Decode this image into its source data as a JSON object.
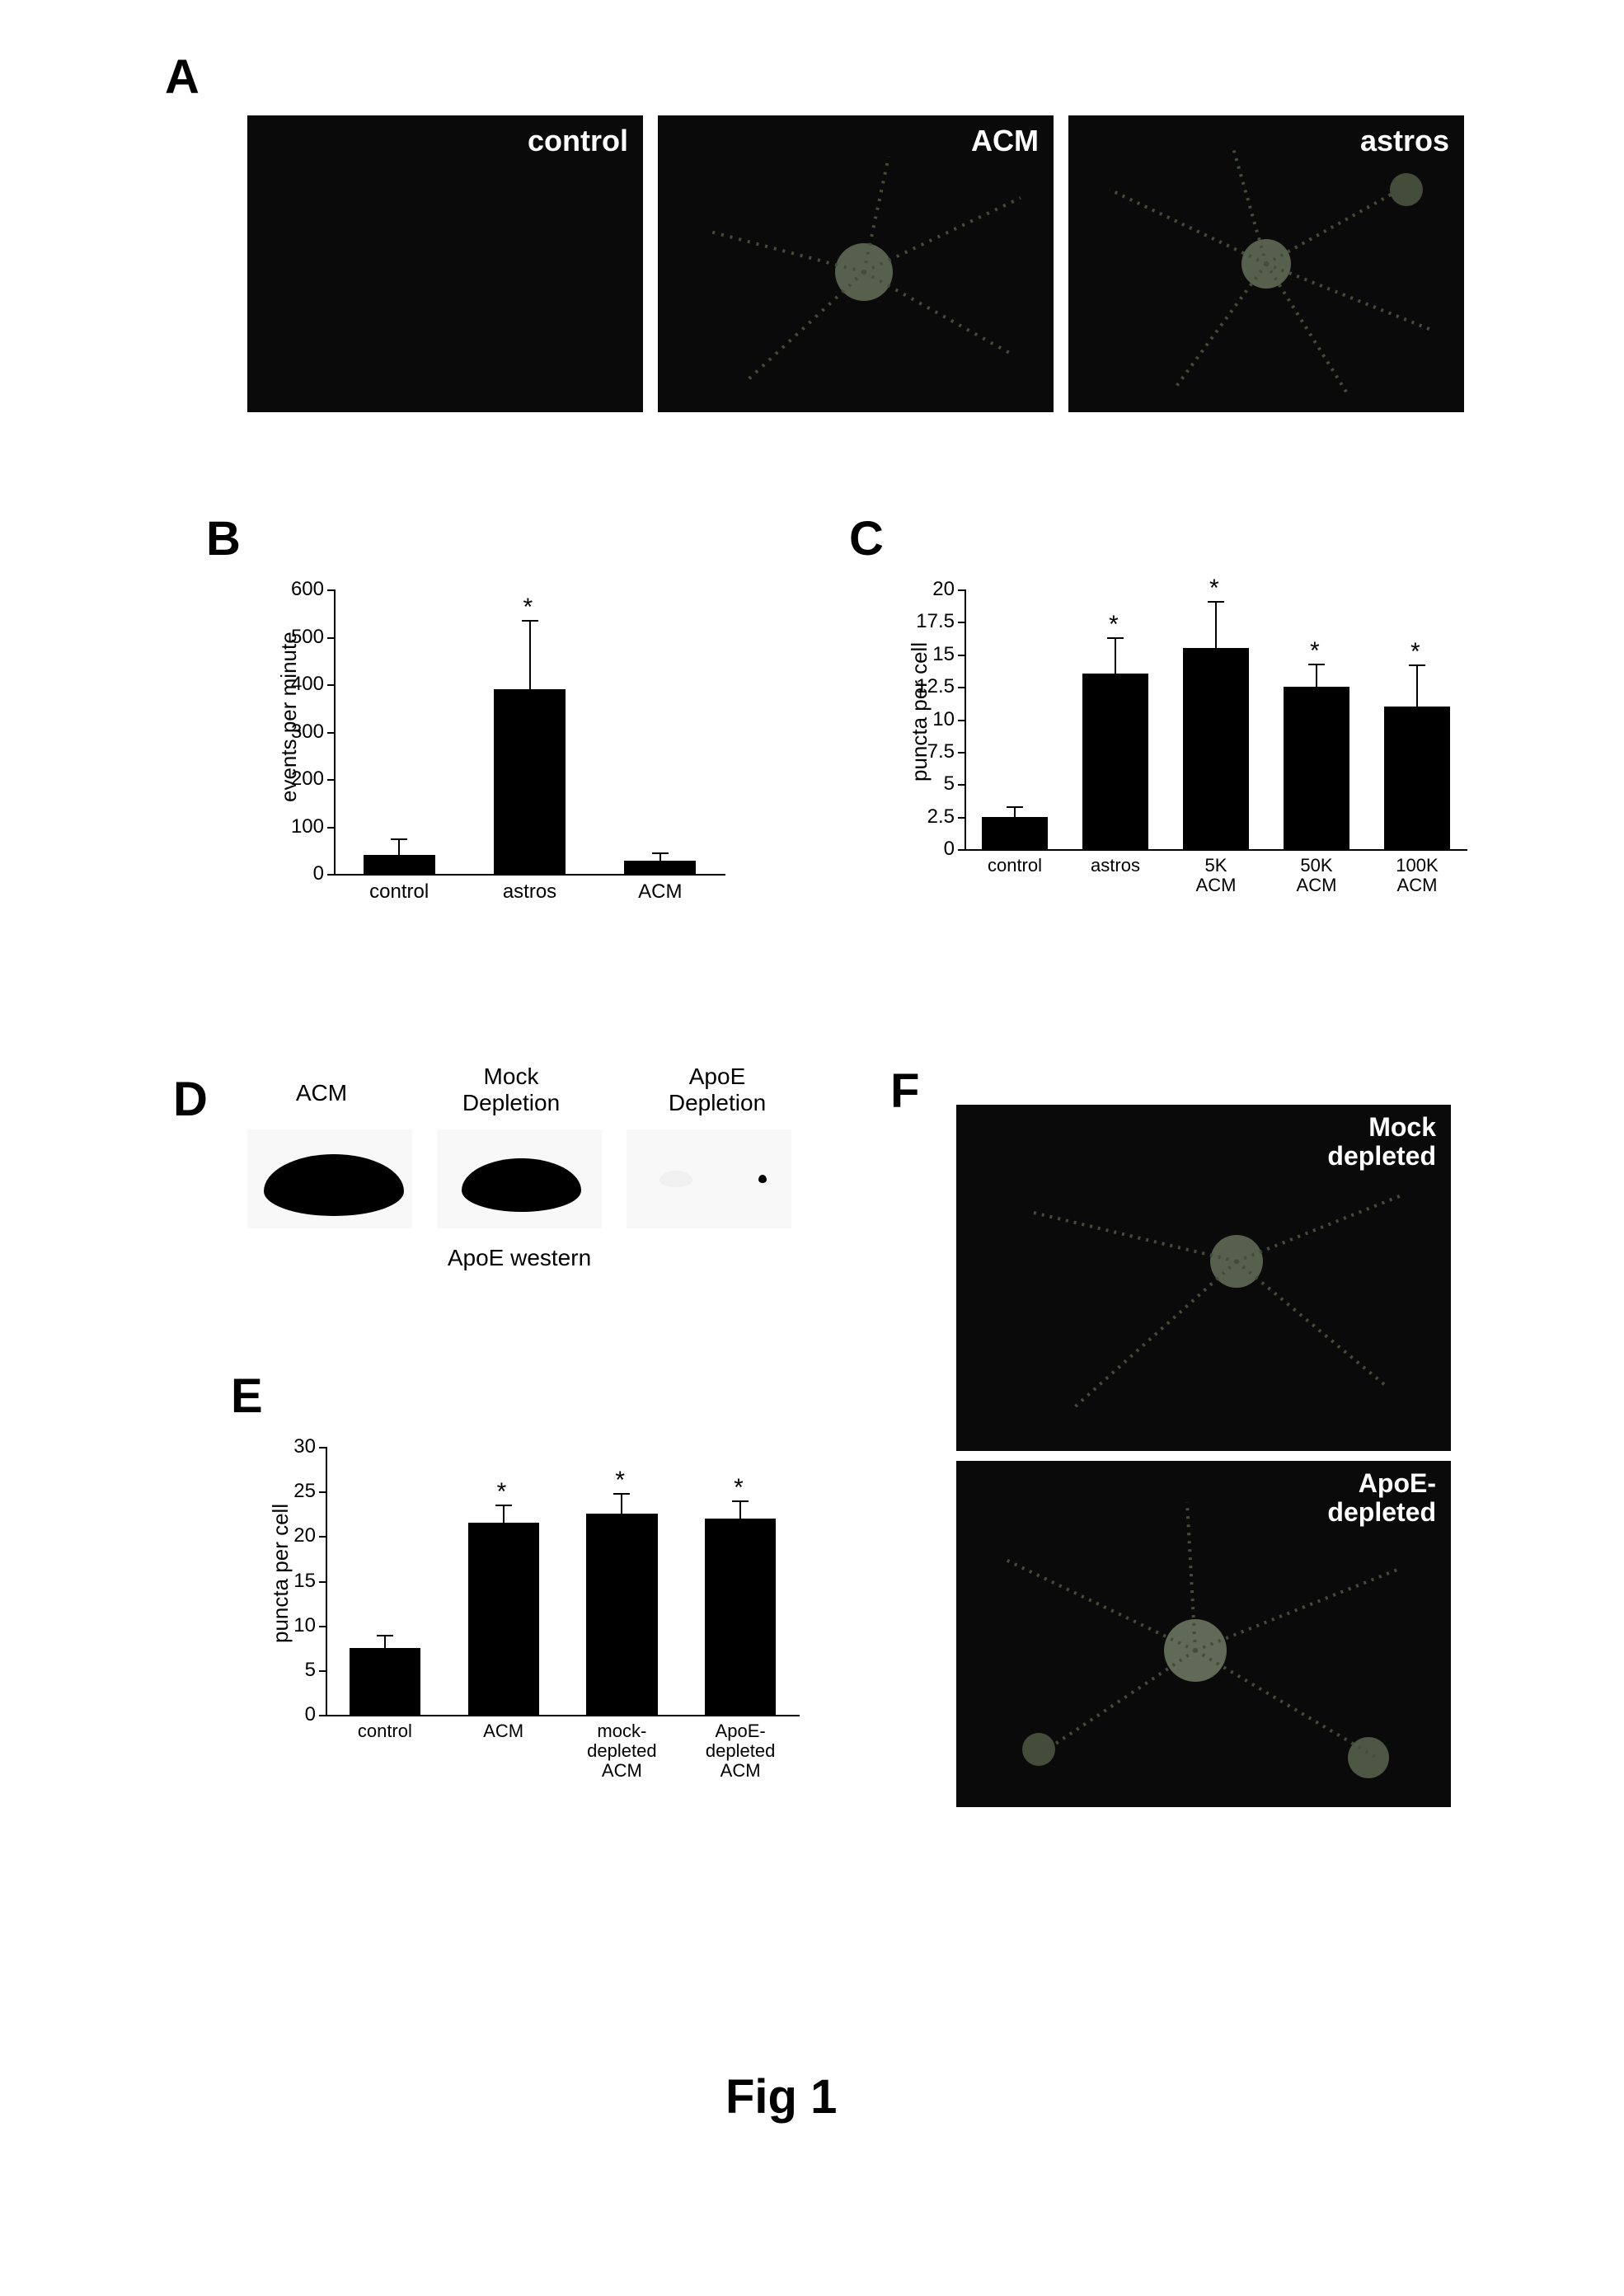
{
  "figure_title": "Fig 1",
  "panelA": {
    "label": "A",
    "images": [
      {
        "label": "control",
        "has_neuron": false
      },
      {
        "label": "ACM",
        "has_neuron": true
      },
      {
        "label": "astros",
        "has_neuron": true
      }
    ]
  },
  "panelB": {
    "label": "B",
    "chart": {
      "type": "bar",
      "ylabel": "events per minute",
      "ylim": [
        0,
        600
      ],
      "ytick_step": 100,
      "bar_color": "#000000",
      "categories": [
        "control",
        "astros",
        "ACM"
      ],
      "values": [
        40,
        390,
        28
      ],
      "errors": [
        35,
        145,
        18
      ],
      "significant": [
        false,
        true,
        false
      ],
      "label_fontsize": 26
    }
  },
  "panelC": {
    "label": "C",
    "chart": {
      "type": "bar",
      "ylabel": "puncta per cell",
      "ylim": [
        0,
        20
      ],
      "ytick_step": 2.5,
      "yticks": [
        "0",
        "2.5",
        "5",
        "7.5",
        "10",
        "12.5",
        "15",
        "17.5",
        "20"
      ],
      "bar_color": "#000000",
      "categories": [
        "control",
        "astros",
        "5K\nACM",
        "50K\nACM",
        "100K\nACM"
      ],
      "values": [
        2.5,
        13.5,
        15.5,
        12.5,
        11.0
      ],
      "errors": [
        0.8,
        2.8,
        3.6,
        1.8,
        3.2
      ],
      "significant": [
        false,
        true,
        true,
        true,
        true
      ],
      "label_fontsize": 26
    }
  },
  "panelD": {
    "label": "D",
    "lanes": [
      "ACM",
      "Mock\nDepletion",
      "ApoE\nDepletion"
    ],
    "intensities": [
      1.0,
      0.85,
      0.05
    ],
    "caption": "ApoE western"
  },
  "panelE": {
    "label": "E",
    "chart": {
      "type": "bar",
      "ylabel": "puncta per cell",
      "ylim": [
        0,
        30
      ],
      "ytick_step": 5,
      "bar_color": "#000000",
      "categories": [
        "control",
        "ACM",
        "mock-\ndepleted\nACM",
        "ApoE-\ndepleted\nACM"
      ],
      "values": [
        7.5,
        21.5,
        22.5,
        22.0
      ],
      "errors": [
        1.5,
        2.0,
        2.3,
        2.0
      ],
      "significant": [
        false,
        true,
        true,
        true
      ],
      "label_fontsize": 26
    }
  },
  "panelF": {
    "label": "F",
    "images": [
      {
        "label": "Mock\ndepleted"
      },
      {
        "label": "ApoE-\ndepleted"
      }
    ]
  },
  "colors": {
    "background": "#ffffff",
    "bar": "#000000",
    "text": "#000000",
    "micro_bg": "#0a0a0a",
    "neuron_glow": "#8a9a7a"
  }
}
